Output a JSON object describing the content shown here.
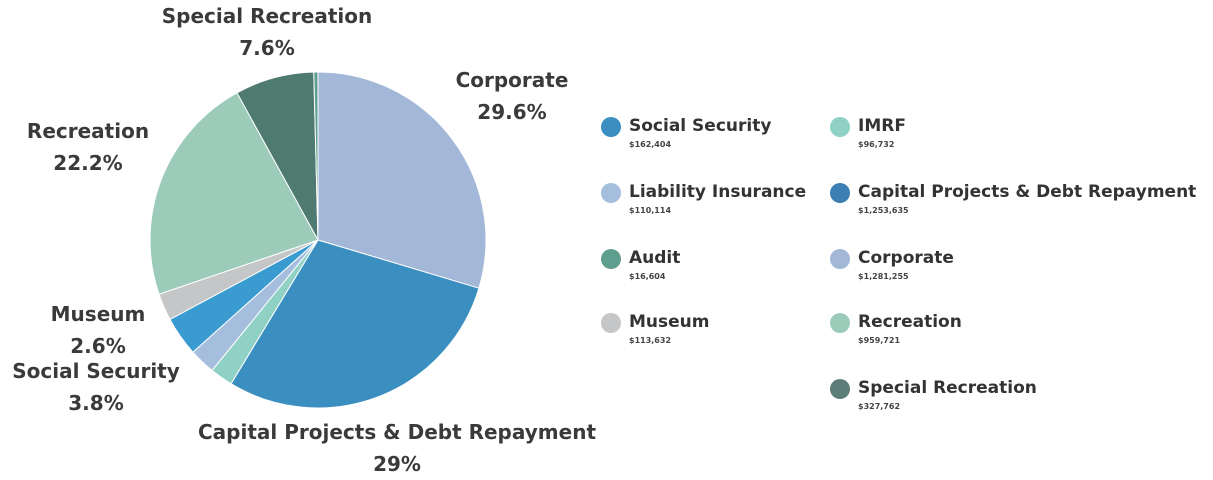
{
  "chart_data": {
    "type": "pie",
    "slices": [
      {
        "name": "Corporate",
        "label": "Corporate",
        "pct_label": "29.6%",
        "value": 29.6,
        "color": "#a3b8d8"
      },
      {
        "name": "Capital Projects & Debt Repayment",
        "label": "Capital Projects & Debt Repayment",
        "pct_label": "29%",
        "value": 29.0,
        "color": "#3b8fc0"
      },
      {
        "name": "IMRF",
        "label": "",
        "pct_label": "",
        "value": 2.2,
        "color": "#8fd1c4"
      },
      {
        "name": "Liability Insurance",
        "label": "",
        "pct_label": "",
        "value": 2.5,
        "color": "#a5bedd"
      },
      {
        "name": "Social Security",
        "label": "Social Security",
        "pct_label": "3.8%",
        "value": 3.8,
        "color": "#3a9bd0"
      },
      {
        "name": "Museum",
        "label": "Museum",
        "pct_label": "2.6%",
        "value": 2.6,
        "color": "#c4c6c8"
      },
      {
        "name": "Recreation",
        "label": "Recreation",
        "pct_label": "22.2%",
        "value": 22.2,
        "color": "#9ccbba"
      },
      {
        "name": "Special Recreation",
        "label": "Special Recreation",
        "pct_label": "7.6%",
        "value": 7.6,
        "color": "#4e7a70"
      },
      {
        "name": "Audit",
        "label": "",
        "pct_label": "",
        "value": 0.4,
        "color": "#5e9e8e"
      }
    ],
    "legend": [
      {
        "name": "Social Security",
        "value": "$162,404",
        "color": "#3b8fc0"
      },
      {
        "name": "IMRF",
        "value": "$96,732",
        "color": "#8fd1c4"
      },
      {
        "name": "Liability Insurance",
        "value": "$110,114",
        "color": "#a5bedd"
      },
      {
        "name": "Capital Projects & Debt Repayment",
        "value": "$1,253,635",
        "color": "#3d7fb2"
      },
      {
        "name": "Audit",
        "value": "$16,604",
        "color": "#5e9e8e"
      },
      {
        "name": "Corporate",
        "value": "$1,281,255",
        "color": "#a3b8d8"
      },
      {
        "name": "Museum",
        "value": "$113,632",
        "color": "#c4c6c8"
      },
      {
        "name": "Recreation",
        "value": "$959,721",
        "color": "#9ccbba"
      },
      {
        "name": "Special Recreation",
        "value": "$327,762",
        "color": "#5c7d78"
      }
    ],
    "legend_placement": "right"
  }
}
